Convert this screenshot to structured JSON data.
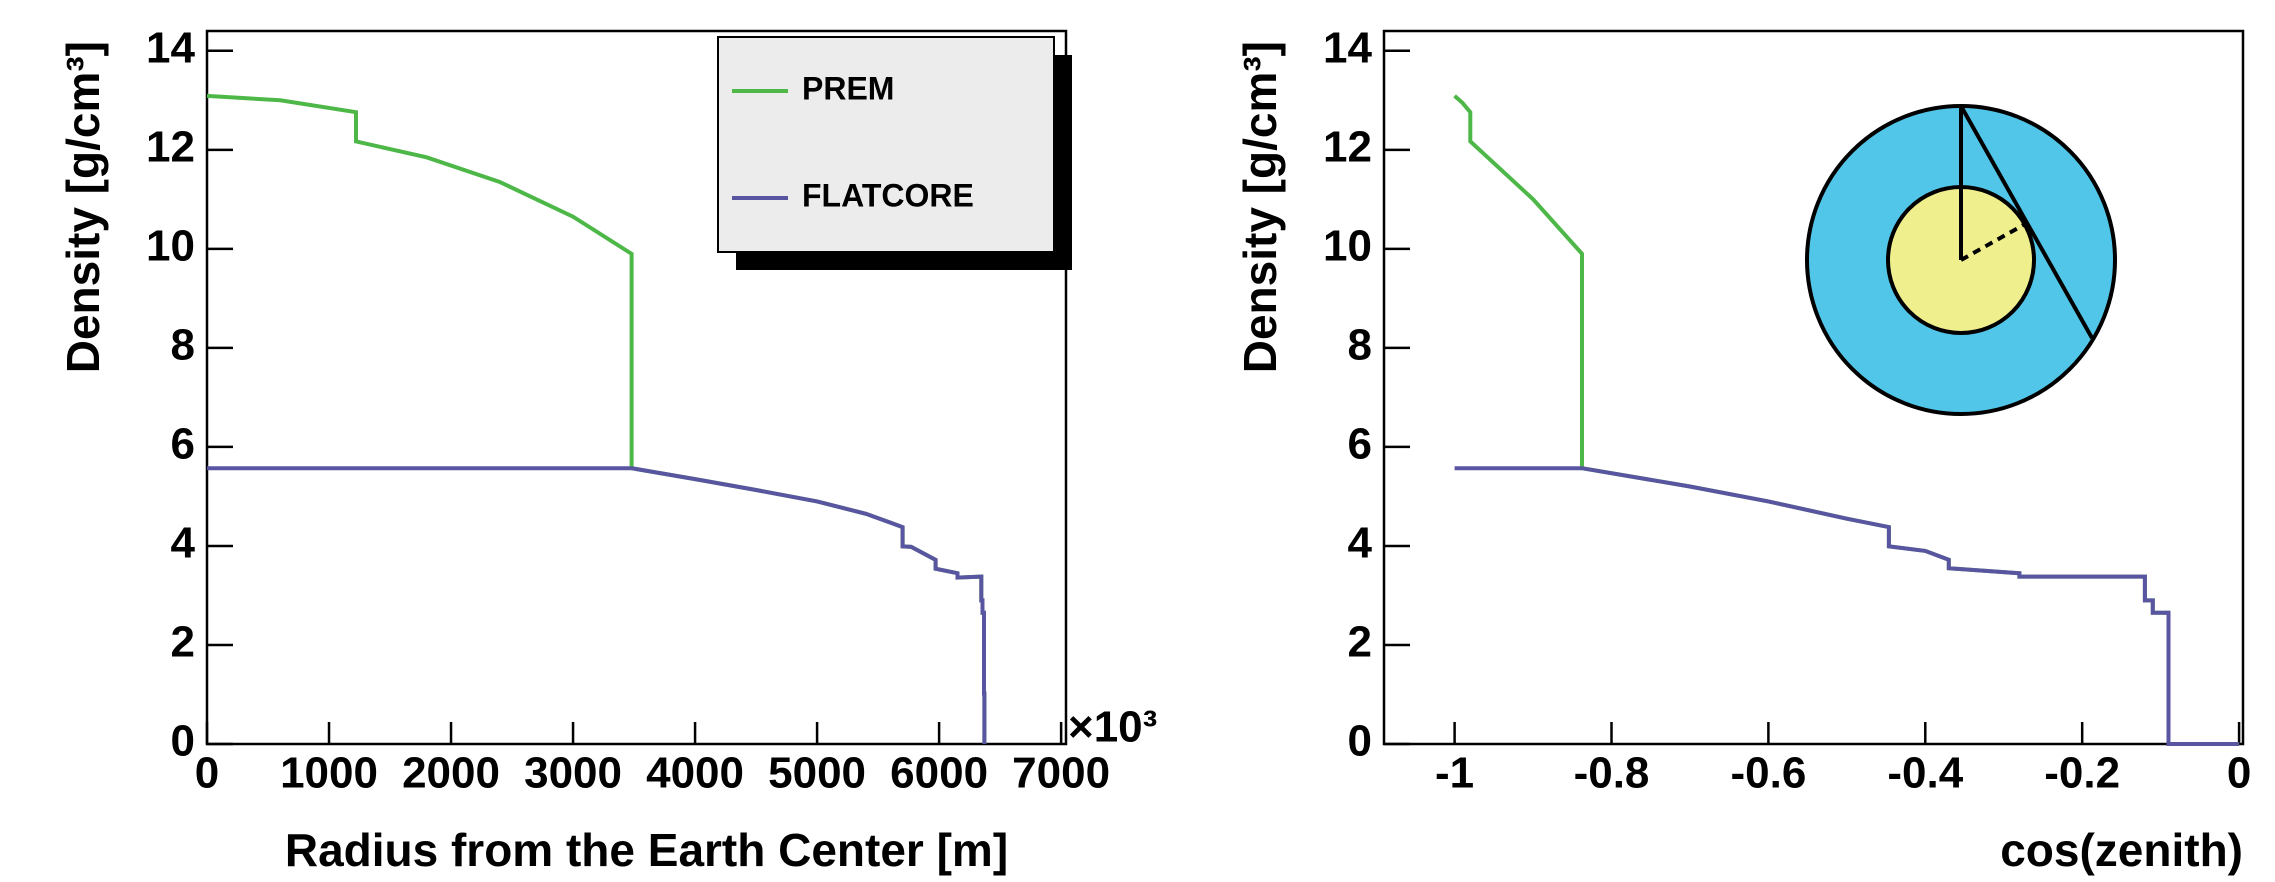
{
  "chart_data": [
    {
      "type": "line",
      "x_label": "Radius from the Earth Center [m]",
      "y_label": "Density [g/cm³]",
      "x_multiplier": "×10³",
      "xlim": [
        0,
        7040
      ],
      "ylim": [
        0,
        14.4
      ],
      "xticks": [
        0,
        1000,
        2000,
        3000,
        4000,
        5000,
        6000,
        7000
      ],
      "yticks": [
        0,
        2,
        4,
        6,
        8,
        10,
        12,
        14
      ],
      "legend": "top-right",
      "series": [
        {
          "name": "PREM",
          "color": "#4db848",
          "x": [
            0,
            600,
            1221,
            1221,
            1800,
            2400,
            3000,
            3480,
            3480,
            4000,
            4500,
            5000,
            5400,
            5701,
            5701,
            5771,
            5971,
            5971,
            6151,
            6151,
            6346,
            6346,
            6356,
            6356,
            6368,
            6368,
            6371,
            6371
          ],
          "values": [
            13.09,
            13.0,
            12.76,
            12.17,
            11.85,
            11.35,
            10.65,
            9.9,
            5.57,
            5.35,
            5.13,
            4.9,
            4.65,
            4.38,
            3.99,
            3.98,
            3.72,
            3.54,
            3.45,
            3.36,
            3.38,
            2.9,
            2.9,
            2.65,
            2.65,
            1.02,
            1.02,
            0
          ]
        },
        {
          "name": "FLATCORE",
          "color": "#5a55a0",
          "x": [
            0,
            3480,
            4000,
            4500,
            5000,
            5400,
            5701,
            5701,
            5771,
            5971,
            5971,
            6151,
            6151,
            6346,
            6346,
            6356,
            6356,
            6368,
            6368,
            6371,
            6371
          ],
          "values": [
            5.57,
            5.57,
            5.35,
            5.13,
            4.9,
            4.65,
            4.38,
            3.99,
            3.98,
            3.72,
            3.54,
            3.45,
            3.36,
            3.38,
            2.9,
            2.9,
            2.65,
            2.65,
            1.02,
            1.02,
            0
          ]
        }
      ]
    },
    {
      "type": "line",
      "x_label": "cos(zenith)",
      "y_label": "Density [g/cm³]",
      "xlim": [
        -1.09,
        0.005
      ],
      "ylim": [
        0,
        14.4
      ],
      "xticks": [
        -1,
        -0.8,
        -0.6,
        -0.4,
        -0.2,
        0
      ],
      "yticks": [
        0,
        2,
        4,
        6,
        8,
        10,
        12,
        14
      ],
      "series": [
        {
          "color": "#4db848",
          "x": [
            -1,
            -0.99,
            -0.98,
            -0.98,
            -0.9,
            -0.8376,
            -0.8376,
            -0.7,
            -0.6,
            -0.5,
            -0.4464,
            -0.4464,
            -0.4,
            -0.37,
            -0.37,
            -0.28,
            -0.28,
            -0.12,
            -0.12,
            -0.11,
            -0.11,
            -0.09,
            -0.09,
            0
          ],
          "values": [
            13.09,
            12.95,
            12.76,
            12.17,
            11.0,
            9.9,
            5.57,
            5.2,
            4.9,
            4.55,
            4.38,
            3.99,
            3.9,
            3.72,
            3.55,
            3.45,
            3.38,
            3.38,
            2.9,
            2.9,
            2.65,
            2.65,
            0,
            0
          ]
        },
        {
          "color": "#5a55a0",
          "x": [
            -1,
            -0.8376,
            -0.7,
            -0.6,
            -0.5,
            -0.4464,
            -0.4464,
            -0.4,
            -0.37,
            -0.37,
            -0.28,
            -0.28,
            -0.12,
            -0.12,
            -0.11,
            -0.11,
            -0.09,
            -0.09,
            0
          ],
          "values": [
            5.57,
            5.57,
            5.2,
            4.9,
            4.55,
            4.38,
            3.99,
            3.9,
            3.72,
            3.55,
            3.45,
            3.38,
            3.38,
            2.9,
            2.9,
            2.65,
            2.65,
            0,
            0
          ]
        }
      ]
    }
  ]
}
